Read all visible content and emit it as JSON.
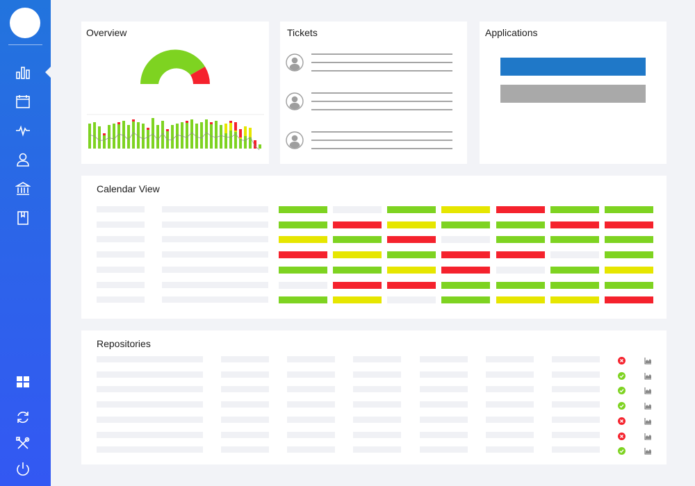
{
  "sidebar": {
    "items": [
      {
        "name": "bar-chart-icon",
        "active": true
      },
      {
        "name": "calendar-icon"
      },
      {
        "name": "pulse-icon"
      },
      {
        "name": "user-icon"
      },
      {
        "name": "bank-icon"
      },
      {
        "name": "book-icon"
      }
    ],
    "bottom_items": [
      {
        "name": "grid-icon"
      },
      {
        "name": "refresh-icon"
      },
      {
        "name": "tools-icon"
      },
      {
        "name": "power-icon"
      }
    ]
  },
  "overview": {
    "title": "Overview",
    "gauge": {
      "green_fraction": 0.82,
      "red_fraction": 0.18
    }
  },
  "tickets": {
    "title": "Tickets",
    "items": 3
  },
  "applications": {
    "title": "Applications",
    "bars": [
      {
        "color": "#1f78c8"
      },
      {
        "color": "#a9a9a9"
      }
    ]
  },
  "calendar": {
    "title": "Calendar View",
    "colors": {
      "G": "#7ed321",
      "R": "#f5222d",
      "Y": "#e6e600",
      "E": "#f0f1f5"
    },
    "rows": [
      "GEGYRGG",
      "GRYGGRR",
      "YGREGGG",
      "RYGRREG",
      "GGYREGY",
      "ERRGGGG",
      "GYEGYYR"
    ]
  },
  "repositories": {
    "title": "Repositories",
    "statuses": [
      "fail",
      "ok",
      "ok",
      "ok",
      "fail",
      "fail",
      "ok"
    ]
  },
  "colors": {
    "green": "#7ed321",
    "red": "#f5222d",
    "yellow": "#e6e600",
    "blue_accent": "#1f78c8"
  }
}
